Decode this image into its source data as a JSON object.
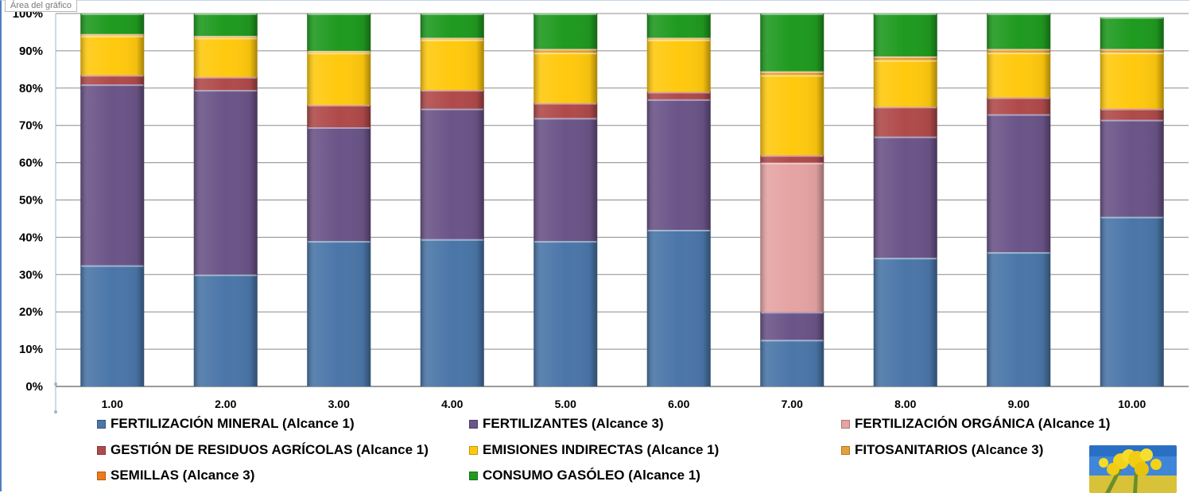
{
  "chart_area_label": "Área del gráfico",
  "chart_data": {
    "type": "bar",
    "stacked": true,
    "normalized": true,
    "title": "",
    "xlabel": "",
    "ylabel": "",
    "ylim": [
      0,
      100
    ],
    "yticks": [
      "0%",
      "10%",
      "20%",
      "30%",
      "40%",
      "50%",
      "60%",
      "70%",
      "80%",
      "90%",
      "100%"
    ],
    "categories": [
      "1.00",
      "2.00",
      "3.00",
      "4.00",
      "5.00",
      "6.00",
      "7.00",
      "8.00",
      "9.00",
      "10.00"
    ],
    "grid": true,
    "legend_position": "bottom",
    "series": [
      {
        "name": "FERTILIZACIÓN MINERAL (Alcance 1)",
        "color": "#4a76a8",
        "values": [
          32.5,
          30,
          39,
          39.5,
          39,
          42,
          12.5,
          34.5,
          36,
          45.5
        ]
      },
      {
        "name": "FERTILIZANTES (Alcance 3)",
        "color": "#6b5488",
        "values": [
          48.5,
          49.5,
          30.5,
          35,
          33,
          35,
          7.5,
          32.5,
          37,
          26
        ]
      },
      {
        "name": "FERTILIZACIÓN ORGÁNICA (Alcance 1)",
        "color": "#e6a3a3",
        "values": [
          0,
          0,
          0,
          0,
          0,
          0,
          40,
          0,
          0,
          0
        ]
      },
      {
        "name": "GESTIÓN DE RESIDUOS AGRÍCOLAS (Alcance 1)",
        "color": "#b04a4a",
        "values": [
          2.5,
          3.5,
          6,
          5,
          4,
          2,
          2,
          8,
          4.5,
          3
        ]
      },
      {
        "name": "EMISIONES INDIRECTAS (Alcance 1)",
        "color": "#ffc90e",
        "values": [
          10.5,
          10.5,
          14,
          13.5,
          13.5,
          14,
          21.5,
          12.5,
          12,
          15
        ]
      },
      {
        "name": "FITOSANITARIOS (Alcance 3)",
        "color": "#e6a03a",
        "values": [
          0.5,
          0.5,
          0.5,
          0.5,
          1,
          0.5,
          1,
          1,
          1,
          1
        ]
      },
      {
        "name": "SEMILLAS (Alcance 3)",
        "color": "#f07a1a",
        "values": [
          0,
          0,
          0,
          0,
          0,
          0,
          0,
          0,
          0,
          0
        ]
      },
      {
        "name": "CONSUMO GASÓLEO (Alcance 1)",
        "color": "#1f9a1f",
        "values": [
          5.5,
          6,
          10,
          6.5,
          9.5,
          6.5,
          15.5,
          11.5,
          9.5,
          8.5
        ]
      }
    ]
  }
}
